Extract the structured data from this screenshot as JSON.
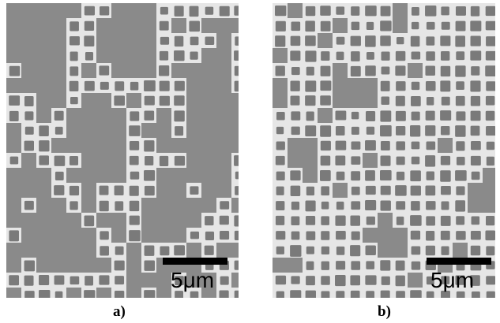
{
  "panels": [
    {
      "id": "a",
      "caption": "a)",
      "scale_label": "5μm",
      "description_colors": {
        "matrix": "#8a8a8a",
        "cube": "#7a7a7a",
        "channel": "#e6e6e6"
      }
    },
    {
      "id": "b",
      "caption": "b)",
      "scale_label": "5μm",
      "description_colors": {
        "matrix": "#8a8a8a",
        "cube": "#7a7a7a",
        "channel": "#e6e6e6"
      }
    }
  ]
}
